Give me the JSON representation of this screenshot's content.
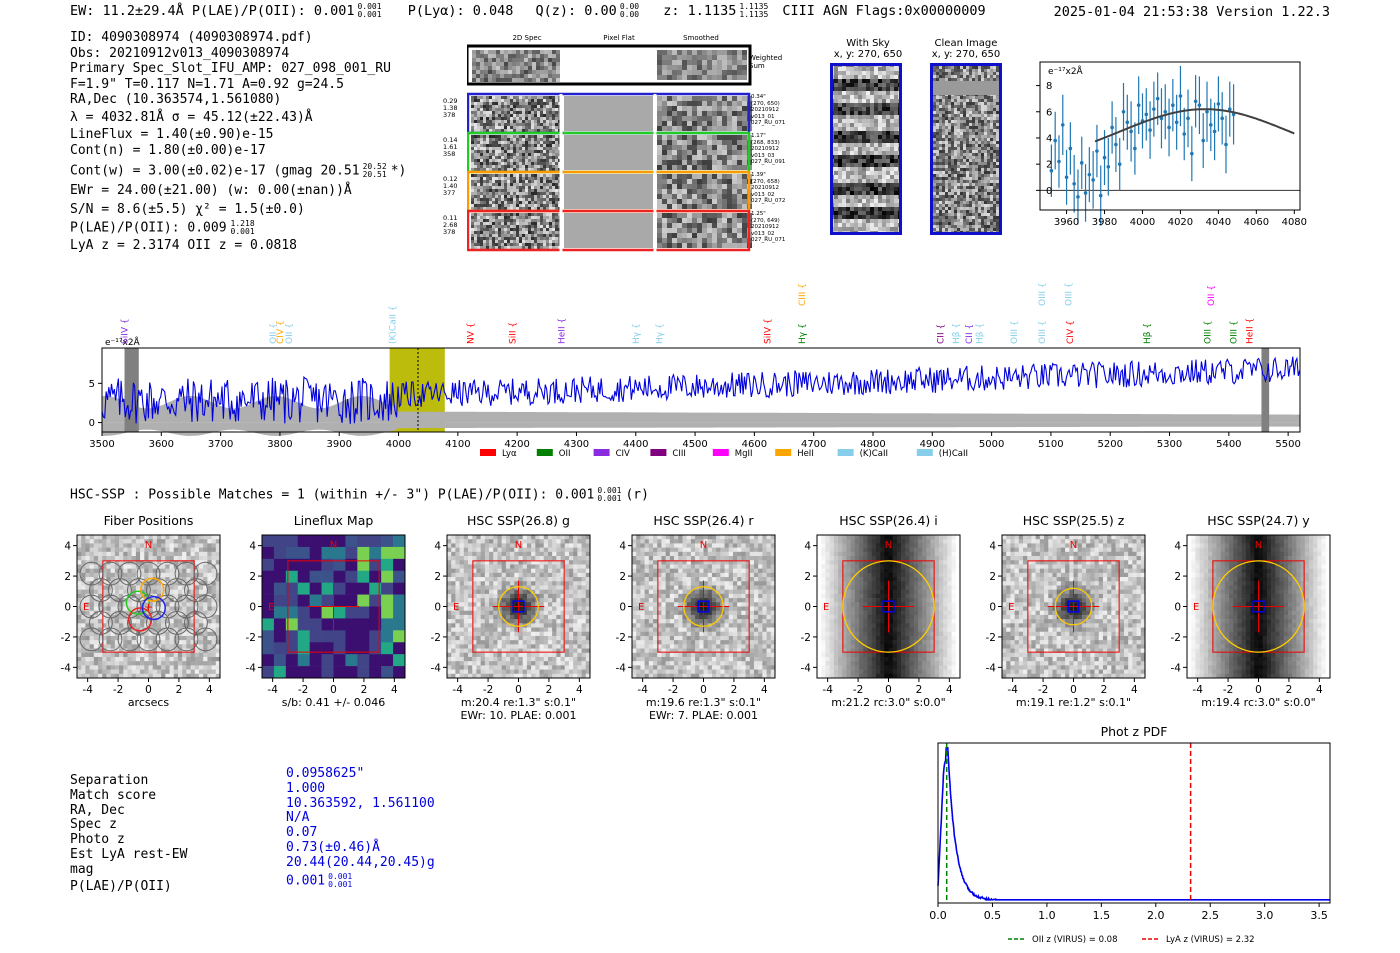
{
  "header": {
    "left": "EW: 11.2±29.4Å  P(LAE)/P(OII): 0.001",
    "plae_sup": "0.001",
    "plae_sub": "0.001",
    "plya": "P(Lyα): 0.048",
    "qz": "Q(z): 0.00",
    "qz_sup": "0.00",
    "qz_sub": "0.00",
    "z": "z: 1.1135",
    "z_sup": "1.1135",
    "z_sub": "1.1135",
    "class": "CIII  AGN  Flags:0x00000009",
    "right": "2025-01-04 21:53:38  Version 1.22.3"
  },
  "info": {
    "lines": [
      "ID: 4090308974 (4090308974.pdf)",
      "Obs: 20210912v013_4090308974",
      "Primary Spec_Slot_IFU_AMP: 027_098_001_RU",
      "F=1.9\"  T=0.117  N=1.71  A=0.92  g=24.5",
      "RA,Dec (10.363574,1.561080)",
      "λ = 4032.81Å  σ = 45.12(±22.43)Å",
      "LineFlux = 1.40(±0.90)e-15",
      "Cont(n) = 1.80(±0.00)e-17",
      "Cont(w) = 3.00(±0.02)e-17 (gmag 20.51",
      "EWr = 24.00(±21.00) (w: 0.00(±nan))Å",
      "S/N = 8.6(±5.5)  χ² = 1.5(±0.0)",
      "P(LAE)/P(OII): 0.009",
      "LyA z = 2.3174  OII z = 0.0818"
    ],
    "gmag_sup": "20.52",
    "gmag_sub": "20.51",
    "gmag_tail": "*)",
    "plae_sup": "1.218",
    "plae_sub": "0.001"
  },
  "spec2d": {
    "headers": [
      "2D Spec",
      "Pixel Flat",
      "Smoothed"
    ],
    "weighted": "Weighted Sum",
    "rows": [
      {
        "nums": [
          "0.29",
          "1.38",
          "378"
        ],
        "stamp": [
          "0.34\"",
          "(270, 650)",
          "20210912",
          "v013_01",
          "027_RU_071"
        ],
        "color": "#2222cc"
      },
      {
        "nums": [
          "0.14",
          "1.61",
          "358"
        ],
        "stamp": [
          "1.17\"",
          "(268, 833)",
          "20210912",
          "v013_03",
          "027_RU_091"
        ],
        "color": "#22cc22"
      },
      {
        "nums": [
          "0.12",
          "1.40",
          "377"
        ],
        "stamp": [
          "1.39\"",
          "(270, 658)",
          "20210912",
          "v013_02",
          "027_RU_072"
        ],
        "color": "#ff9900"
      },
      {
        "nums": [
          "0.11",
          "2.68",
          "378"
        ],
        "stamp": [
          "1.25\"",
          "(270, 649)",
          "20210912",
          "v013_02",
          "027_RU_071"
        ],
        "color": "#ee2222"
      }
    ]
  },
  "cutouts": [
    {
      "title": "With Sky",
      "coord": "x, y: 270, 650"
    },
    {
      "title": "Clean Image",
      "coord": "x, y: 270, 650"
    }
  ],
  "mini_chart": {
    "type": "scatter",
    "unit": "e⁻¹⁷x2Å",
    "xlim": [
      3946,
      4083
    ],
    "ylim": [
      -1.5,
      9.8
    ],
    "xticks": [
      3960,
      3980,
      4000,
      4020,
      4040,
      4060,
      4080
    ],
    "yticks": [
      0,
      2,
      4,
      6,
      8
    ],
    "x": [
      3952,
      3954,
      3956,
      3958,
      3960,
      3962,
      3964,
      3966,
      3968,
      3970,
      3972,
      3974,
      3976,
      3978,
      3980,
      3982,
      3984,
      3986,
      3988,
      3990,
      3992,
      3994,
      3996,
      3998,
      4000,
      4002,
      4004,
      4006,
      4008,
      4010,
      4012,
      4014,
      4016,
      4018,
      4020,
      4022,
      4024,
      4026,
      4028,
      4030,
      4032,
      4034,
      4036,
      4038,
      4040,
      4042,
      4044,
      4046,
      4048
    ],
    "y": [
      1.5,
      3.8,
      2.2,
      5.0,
      1.0,
      3.2,
      0.5,
      -0.5,
      2.1,
      -0.2,
      1.2,
      0.8,
      3.0,
      -0.4,
      2.5,
      1.8,
      4.8,
      3.5,
      2.0,
      6.0,
      5.2,
      4.5,
      3.2,
      6.5,
      5.3,
      5.8,
      4.6,
      6.2,
      7.0,
      5.5,
      6.0,
      4.8,
      6.5,
      5.2,
      7.2,
      4.3,
      5.5,
      2.8,
      6.8,
      6.5,
      3.8,
      6.0,
      5.0,
      4.5,
      6.6,
      5.5,
      3.5,
      6.2,
      5.8
    ],
    "err": [
      2.0,
      2.2,
      2.0,
      2.3,
      2.1,
      2.0,
      2.2,
      2.1,
      2.0,
      2.2,
      2.1,
      2.2,
      2.0,
      2.3,
      2.1,
      2.2,
      2.0,
      2.1,
      2.0,
      2.2,
      2.1,
      2.3,
      2.0,
      2.2,
      2.1,
      2.0,
      2.2,
      2.1,
      2.0,
      2.3,
      2.1,
      2.2,
      2.0,
      2.1,
      2.3,
      2.0,
      2.2,
      2.1,
      2.0,
      2.2,
      2.1,
      2.3,
      2.0,
      2.2,
      2.1,
      2.0,
      2.2,
      2.1,
      2.3
    ],
    "fit": {
      "mu": 4032.81,
      "sigma": 45.12,
      "amp": 4.4,
      "base": 1.8
    }
  },
  "spectrum": {
    "type": "line",
    "unit": "e⁻¹⁷x2Å",
    "xlim": [
      3500,
      5520
    ],
    "ylim": [
      -1.2,
      9.5
    ],
    "xticks": [
      3500,
      3600,
      3700,
      3800,
      3900,
      4000,
      4100,
      4200,
      4300,
      4400,
      4500,
      4600,
      4700,
      4800,
      4900,
      5000,
      5100,
      5200,
      5300,
      5400,
      5500
    ],
    "yticks": [
      0,
      5
    ],
    "highlight": [
      3985,
      4078
    ],
    "center": 4032.81,
    "masks": [
      3538,
      3562,
      5455,
      5468
    ],
    "lines": [
      {
        "label": "SiIV",
        "x": 3538,
        "color": "#8a2be2",
        "row": 0
      },
      {
        "label": "OII",
        "x": 3788,
        "color": "#87ceeb",
        "row": 0
      },
      {
        "label": "CIV",
        "x": 3800,
        "color": "#ffa500",
        "row": 0
      },
      {
        "label": "OII",
        "x": 3815,
        "color": "#87ceeb",
        "row": 0
      },
      {
        "label": "(K)CaII",
        "x": 3990,
        "color": "#87ceeb",
        "row": 0
      },
      {
        "label": "NV",
        "x": 4121,
        "color": "#ff0000",
        "row": 0
      },
      {
        "label": "SiII",
        "x": 4192,
        "color": "#ff0000",
        "row": 0
      },
      {
        "label": "HeII",
        "x": 4275,
        "color": "#8a2be2",
        "row": 0
      },
      {
        "label": "Hγ",
        "x": 4400,
        "color": "#87ceeb",
        "row": 0
      },
      {
        "label": "Hγ",
        "x": 4440,
        "color": "#87ceeb",
        "row": 0
      },
      {
        "label": "SiIV",
        "x": 4622,
        "color": "#ff0000",
        "row": 0
      },
      {
        "label": "CIII",
        "x": 4680,
        "color": "#ffa500",
        "row": 1
      },
      {
        "label": "Hγ",
        "x": 4680,
        "color": "#008000",
        "row": 0
      },
      {
        "label": "CII",
        "x": 4914,
        "color": "#800080",
        "row": 0
      },
      {
        "label": "Hβ",
        "x": 4940,
        "color": "#87ceeb",
        "row": 0
      },
      {
        "label": "CII",
        "x": 4962,
        "color": "#8a2be2",
        "row": 0
      },
      {
        "label": "Hβ",
        "x": 4980,
        "color": "#87ceeb",
        "row": 0
      },
      {
        "label": "OIII",
        "x": 5038,
        "color": "#87ceeb",
        "row": 0
      },
      {
        "label": "OIII",
        "x": 5085,
        "color": "#87ceeb",
        "row": 0
      },
      {
        "label": "OIII",
        "x": 5085,
        "color": "#87ceeb",
        "row": 1
      },
      {
        "label": "CIV",
        "x": 5132,
        "color": "#ff0000",
        "row": 0
      },
      {
        "label": "OIII",
        "x": 5130,
        "color": "#87ceeb",
        "row": 1
      },
      {
        "label": "Hβ",
        "x": 5262,
        "color": "#008000",
        "row": 0
      },
      {
        "label": "OIII",
        "x": 5364,
        "color": "#008000",
        "row": 0
      },
      {
        "label": "OII",
        "x": 5370,
        "color": "#ff00ff",
        "row": 1
      },
      {
        "label": "OIII",
        "x": 5408,
        "color": "#008000",
        "row": 0
      },
      {
        "label": "HeII",
        "x": 5435,
        "color": "#ff0000",
        "row": 0
      }
    ],
    "legend": [
      {
        "label": "Lyα",
        "color": "#ff0000"
      },
      {
        "label": "OII",
        "color": "#008000"
      },
      {
        "label": "CIV",
        "color": "#8a2be2"
      },
      {
        "label": "CIII",
        "color": "#800080"
      },
      {
        "label": "MgII",
        "color": "#ff00ff"
      },
      {
        "label": "HeII",
        "color": "#ffa500"
      },
      {
        "label": "(K)CaII",
        "color": "#87ceeb"
      },
      {
        "label": "(H)CaII",
        "color": "#87ceeb"
      }
    ]
  },
  "hsc": {
    "title": "HSC-SSP : Possible Matches = 1 (within +/- 3\")  P(LAE)/P(OII): 0.001",
    "title_sup": "0.001",
    "title_sub": "0.001",
    "title_tail": "(r)",
    "axis_ticks": [
      "-4",
      "-2",
      "0",
      "2",
      "4"
    ],
    "y_ticks": [
      "4",
      "2",
      "0",
      "-2",
      "-4"
    ],
    "panels": [
      {
        "title": "Fiber Positions",
        "caption": [
          "arcsecs"
        ],
        "kind": "fibers"
      },
      {
        "title": "Lineflux Map",
        "caption": [
          "s/b: 0.41 +/- 0.046"
        ],
        "kind": "flux"
      },
      {
        "title": "HSC SSP(26.8) g",
        "caption": [
          "m:20.4  re:1.3\"  s:0.1\"",
          "EWr: 10. PLAE: 0.001"
        ],
        "kind": "blob",
        "ring": 1.3
      },
      {
        "title": "HSC SSP(26.4) r",
        "caption": [
          "m:19.6  re:1.3\"  s:0.1\"",
          "EWr: 7. PLAE: 0.001"
        ],
        "kind": "blob",
        "ring": 1.3
      },
      {
        "title": "HSC SSP(26.4) i",
        "caption": [
          "m:21.2 rc:3.0\"  s:0.0\""
        ],
        "kind": "dark",
        "ring": 3.0
      },
      {
        "title": "HSC SSP(25.5) z",
        "caption": [
          "m:19.1  re:1.2\"  s:0.1\""
        ],
        "kind": "blob",
        "ring": 1.2
      },
      {
        "title": "HSC SSP(24.7) y",
        "caption": [
          "m:19.4 rc:3.0\"  s:0.0\""
        ],
        "kind": "dark",
        "ring": 3.0
      }
    ],
    "compass": {
      "n": "N",
      "e": "E"
    }
  },
  "match": {
    "labels": [
      "Separation",
      "Match score",
      "RA, Dec",
      "Spec z",
      "Photo z",
      "Est LyA rest-EW",
      "mag",
      "P(LAE)/P(OII)"
    ],
    "values": [
      "0.0958625\"",
      "1.000",
      "10.363592, 1.561100",
      "N/A",
      "0.07",
      "0.73(±0.46)Å",
      "20.44(20.44,20.45)g",
      "0.001"
    ],
    "plae_sup": "0.001",
    "plae_sub": "0.001"
  },
  "photz": {
    "type": "line",
    "title": "Phot z PDF",
    "xlim": [
      0,
      3.6
    ],
    "xticks": [
      "0.0",
      "0.5",
      "1.0",
      "1.5",
      "2.0",
      "2.5",
      "3.0",
      "3.5"
    ],
    "oii_z": 0.08,
    "lya_z": 2.32,
    "legend_oii": "OII z (VIRUS) = 0.08",
    "legend_lya": "LyA z (VIRUS) = 2.32",
    "peak_z": 0.07,
    "colors": {
      "pdf": "#0000ee",
      "oii": "#008000",
      "lya": "#ee0000"
    }
  }
}
